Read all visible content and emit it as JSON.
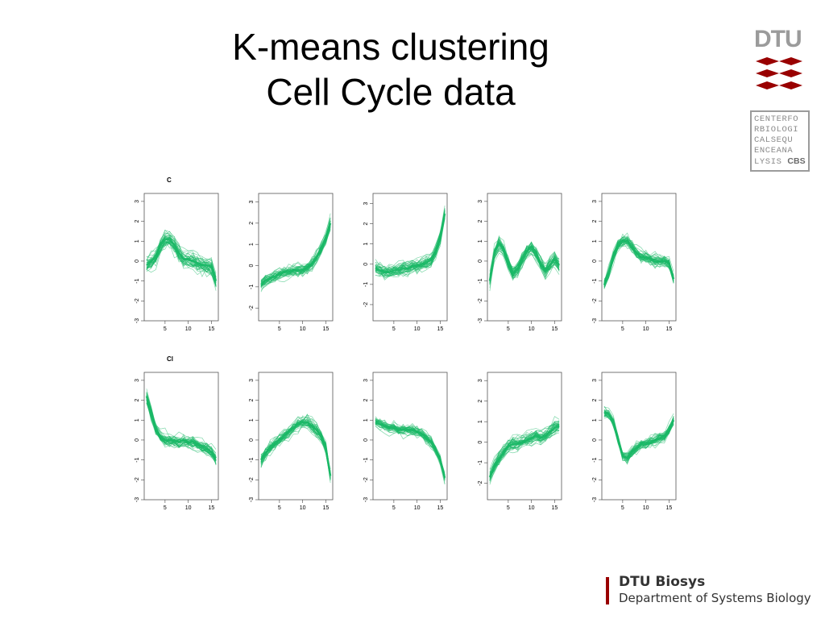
{
  "slide": {
    "title_line1": "K-means clustering",
    "title_line2": "Cell Cycle data",
    "footer_title": "DTU Biosys",
    "footer_subtitle": "Department of Systems Biology",
    "dtu_logo_text": "DTU",
    "cbs_logo_lines": [
      "CENTERFO",
      "RBIOLOGI",
      "CALSEQU",
      "ENCEANA",
      "LYSIS"
    ],
    "cbs_logo_bold": "CBS",
    "colors": {
      "line": "#1ab866",
      "dtu_red": "#990000",
      "logo_gray": "#9b9b9b"
    }
  },
  "chart_data": [
    {
      "type": "line",
      "panel_label": "C",
      "x": [
        1,
        2,
        3,
        4,
        5,
        6,
        7,
        8,
        9,
        10,
        11,
        12,
        13,
        14,
        15,
        16
      ],
      "xticks": [
        5,
        10,
        15
      ],
      "yticks": [
        -3,
        -2,
        -1,
        0,
        1,
        2,
        3
      ],
      "ylim": [
        -3,
        3.4
      ],
      "centroid": [
        -0.2,
        0.0,
        0.2,
        0.8,
        1.1,
        1.1,
        0.8,
        0.4,
        0.1,
        0.1,
        0.0,
        -0.1,
        -0.2,
        -0.2,
        -0.3,
        -1.0
      ],
      "spread": 0.45,
      "n_lines": 40
    },
    {
      "type": "line",
      "panel_label": "",
      "x": [
        1,
        2,
        3,
        4,
        5,
        6,
        7,
        8,
        9,
        10,
        11,
        12,
        13,
        14,
        15,
        16
      ],
      "xticks": [
        5,
        10,
        15
      ],
      "yticks": [
        -2,
        -1,
        0,
        1,
        2,
        3
      ],
      "ylim": [
        -2.6,
        3.4
      ],
      "centroid": [
        -0.9,
        -0.7,
        -0.6,
        -0.5,
        -0.4,
        -0.3,
        -0.3,
        -0.2,
        -0.2,
        -0.2,
        -0.1,
        0.1,
        0.4,
        0.8,
        1.3,
        2.0
      ],
      "spread": 0.3,
      "n_lines": 40
    },
    {
      "type": "line",
      "panel_label": "",
      "x": [
        1,
        2,
        3,
        4,
        5,
        6,
        7,
        8,
        9,
        10,
        11,
        12,
        13,
        14,
        15,
        16
      ],
      "xticks": [
        5,
        10,
        15
      ],
      "yticks": [
        -2,
        -1,
        0,
        1,
        2,
        3
      ],
      "ylim": [
        -2.8,
        3.5
      ],
      "centroid": [
        -0.2,
        -0.3,
        -0.4,
        -0.4,
        -0.3,
        -0.3,
        -0.2,
        -0.2,
        -0.1,
        -0.1,
        0.0,
        0.1,
        0.2,
        0.6,
        1.3,
        2.5
      ],
      "spread": 0.35,
      "n_lines": 40
    },
    {
      "type": "line",
      "panel_label": "",
      "x": [
        1,
        2,
        3,
        4,
        5,
        6,
        7,
        8,
        9,
        10,
        11,
        12,
        13,
        14,
        15,
        16
      ],
      "xticks": [
        5,
        10,
        15
      ],
      "yticks": [
        -3,
        -2,
        -1,
        0,
        1,
        2,
        3
      ],
      "ylim": [
        -3,
        3.4
      ],
      "centroid": [
        -1.0,
        0.4,
        0.9,
        0.6,
        -0.1,
        -0.6,
        -0.4,
        0.1,
        0.5,
        0.7,
        0.4,
        -0.1,
        -0.5,
        -0.2,
        0.1,
        -0.2
      ],
      "spread": 0.4,
      "n_lines": 40
    },
    {
      "type": "line",
      "panel_label": "",
      "x": [
        1,
        2,
        3,
        4,
        5,
        6,
        7,
        8,
        9,
        10,
        11,
        12,
        13,
        14,
        15,
        16
      ],
      "xticks": [
        5,
        10,
        15
      ],
      "yticks": [
        -3,
        -2,
        -1,
        0,
        1,
        2,
        3
      ],
      "ylim": [
        -3,
        3.4
      ],
      "centroid": [
        -1.2,
        -0.6,
        0.2,
        0.8,
        1.0,
        1.0,
        0.7,
        0.4,
        0.2,
        0.2,
        0.1,
        0.0,
        0.0,
        0.0,
        -0.1,
        -0.9
      ],
      "spread": 0.35,
      "n_lines": 40
    },
    {
      "type": "line",
      "panel_label": "Cl",
      "x": [
        1,
        2,
        3,
        4,
        5,
        6,
        7,
        8,
        9,
        10,
        11,
        12,
        13,
        14,
        15,
        16
      ],
      "xticks": [
        5,
        10,
        15
      ],
      "yticks": [
        -3,
        -2,
        -1,
        0,
        1,
        2,
        3
      ],
      "ylim": [
        -3,
        3.4
      ],
      "centroid": [
        2.2,
        1.4,
        0.6,
        0.2,
        0.0,
        0.0,
        0.0,
        -0.1,
        0.0,
        -0.1,
        -0.1,
        -0.2,
        -0.3,
        -0.4,
        -0.6,
        -0.9
      ],
      "spread": 0.35,
      "n_lines": 40
    },
    {
      "type": "line",
      "panel_label": "",
      "x": [
        1,
        2,
        3,
        4,
        5,
        6,
        7,
        8,
        9,
        10,
        11,
        12,
        13,
        14,
        15,
        16
      ],
      "xticks": [
        5,
        10,
        15
      ],
      "yticks": [
        -3,
        -2,
        -1,
        0,
        1,
        2,
        3
      ],
      "ylim": [
        -3,
        3.4
      ],
      "centroid": [
        -1.0,
        -0.7,
        -0.4,
        -0.2,
        0.0,
        0.2,
        0.4,
        0.6,
        0.8,
        0.9,
        0.9,
        0.7,
        0.5,
        0.2,
        -0.4,
        -1.8
      ],
      "spread": 0.35,
      "n_lines": 40
    },
    {
      "type": "line",
      "panel_label": "",
      "x": [
        1,
        2,
        3,
        4,
        5,
        6,
        7,
        8,
        9,
        10,
        11,
        12,
        13,
        14,
        15,
        16
      ],
      "xticks": [
        5,
        10,
        15
      ],
      "yticks": [
        -3,
        -2,
        -1,
        0,
        1,
        2,
        3
      ],
      "ylim": [
        -3,
        3.4
      ],
      "centroid": [
        0.9,
        0.8,
        0.7,
        0.6,
        0.6,
        0.5,
        0.5,
        0.5,
        0.5,
        0.4,
        0.3,
        0.1,
        -0.1,
        -0.5,
        -1.0,
        -1.9
      ],
      "spread": 0.3,
      "n_lines": 40
    },
    {
      "type": "line",
      "panel_label": "",
      "x": [
        1,
        2,
        3,
        4,
        5,
        6,
        7,
        8,
        9,
        10,
        11,
        12,
        13,
        14,
        15,
        16
      ],
      "xticks": [
        5,
        10,
        15
      ],
      "yticks": [
        -2,
        -1,
        0,
        1,
        2,
        3
      ],
      "ylim": [
        -2.8,
        3.4
      ],
      "centroid": [
        -1.7,
        -1.2,
        -0.8,
        -0.5,
        -0.2,
        -0.1,
        -0.1,
        0.0,
        0.1,
        0.2,
        0.3,
        0.2,
        0.3,
        0.5,
        0.7,
        0.8
      ],
      "spread": 0.35,
      "n_lines": 40
    },
    {
      "type": "line",
      "panel_label": "",
      "x": [
        1,
        2,
        3,
        4,
        5,
        6,
        7,
        8,
        9,
        10,
        11,
        12,
        13,
        14,
        15,
        16
      ],
      "xticks": [
        5,
        10,
        15
      ],
      "yticks": [
        -3,
        -2,
        -1,
        0,
        1,
        2,
        3
      ],
      "ylim": [
        -3,
        3.4
      ],
      "centroid": [
        1.4,
        1.3,
        0.9,
        0.0,
        -0.8,
        -0.9,
        -0.6,
        -0.4,
        -0.2,
        -0.2,
        -0.1,
        0.0,
        0.1,
        0.2,
        0.5,
        1.0
      ],
      "spread": 0.3,
      "n_lines": 40
    }
  ]
}
